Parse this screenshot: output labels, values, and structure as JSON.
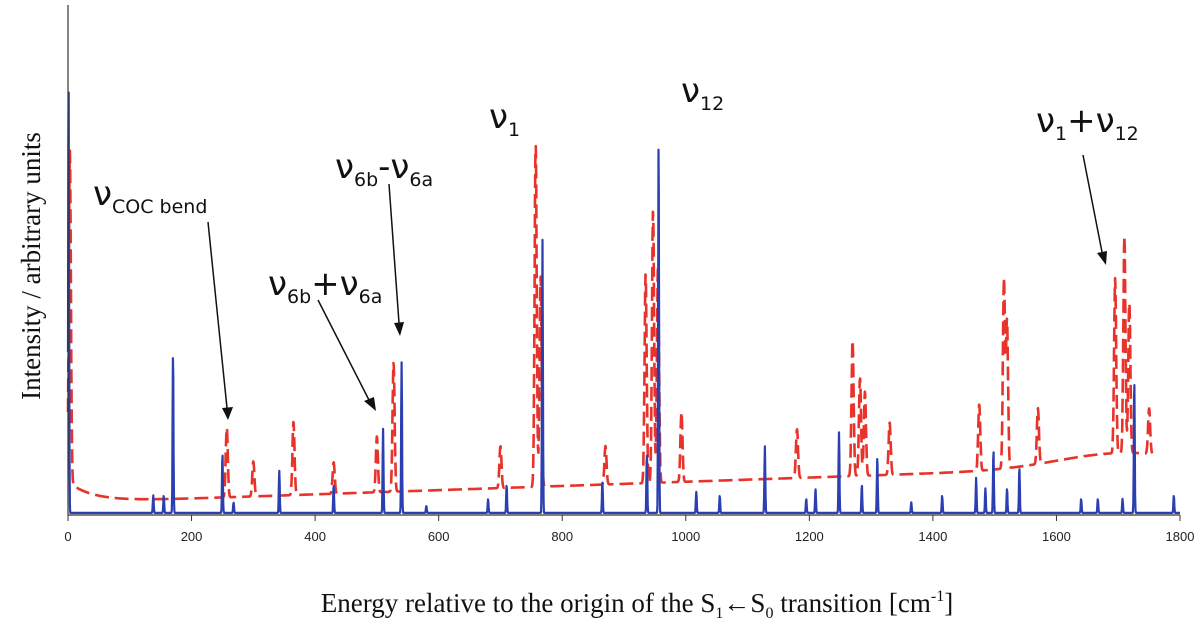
{
  "chart_data": {
    "type": "line",
    "xlabel_main": "Energy relative to the origin of the S",
    "xlabel_sub1": "1",
    "xlabel_arrow": "←S",
    "xlabel_sub0": "0",
    "xlabel_tail": " transition [cm",
    "xlabel_sup": "-1",
    "xlabel_end": "]",
    "ylabel": "Intensity / arbitrary units",
    "xlim": [
      0,
      1800
    ],
    "ylim": [
      0,
      1
    ],
    "x_ticks": [
      0,
      200,
      400,
      600,
      800,
      1000,
      1200,
      1400,
      1600,
      1800
    ],
    "grid": false,
    "series": [
      {
        "color": "#e8332b",
        "style": "dashed",
        "baseline": 0.035,
        "peaks": [
          [
            3,
            0.95
          ],
          [
            257,
            0.2
          ],
          [
            300,
            0.1
          ],
          [
            365,
            0.21
          ],
          [
            430,
            0.09
          ],
          [
            500,
            0.16
          ],
          [
            527,
            0.37
          ],
          [
            700,
            0.12
          ],
          [
            757,
            0.98
          ],
          [
            765,
            0.6
          ],
          [
            870,
            0.11
          ],
          [
            935,
            0.6
          ],
          [
            947,
            0.78
          ],
          [
            955,
            0.62
          ],
          [
            993,
            0.2
          ],
          [
            1180,
            0.14
          ],
          [
            1270,
            0.39
          ],
          [
            1282,
            0.28
          ],
          [
            1290,
            0.24
          ],
          [
            1330,
            0.15
          ],
          [
            1475,
            0.19
          ],
          [
            1515,
            0.54
          ],
          [
            1520,
            0.42
          ],
          [
            1570,
            0.16
          ],
          [
            1695,
            0.5
          ],
          [
            1710,
            0.62
          ],
          [
            1718,
            0.43
          ],
          [
            1750,
            0.13
          ]
        ]
      },
      {
        "color": "#2b3fb0",
        "style": "solid",
        "baseline": 0.006,
        "peaks": [
          [
            1,
            1.25
          ],
          [
            138,
            0.05
          ],
          [
            155,
            0.05
          ],
          [
            170,
            0.46
          ],
          [
            250,
            0.17
          ],
          [
            268,
            0.03
          ],
          [
            342,
            0.12
          ],
          [
            430,
            0.08
          ],
          [
            510,
            0.24
          ],
          [
            540,
            0.43
          ],
          [
            580,
            0.02
          ],
          [
            680,
            0.04
          ],
          [
            710,
            0.08
          ],
          [
            768,
            0.78
          ],
          [
            865,
            0.09
          ],
          [
            937,
            0.17
          ],
          [
            956,
            1.08
          ],
          [
            1017,
            0.06
          ],
          [
            1055,
            0.05
          ],
          [
            1128,
            0.19
          ],
          [
            1195,
            0.04
          ],
          [
            1210,
            0.07
          ],
          [
            1248,
            0.23
          ],
          [
            1285,
            0.08
          ],
          [
            1310,
            0.16
          ],
          [
            1365,
            0.03
          ],
          [
            1415,
            0.05
          ],
          [
            1470,
            0.1
          ],
          [
            1485,
            0.07
          ],
          [
            1498,
            0.18
          ],
          [
            1520,
            0.07
          ],
          [
            1540,
            0.13
          ],
          [
            1640,
            0.04
          ],
          [
            1667,
            0.04
          ],
          [
            1707,
            0.04
          ],
          [
            1726,
            0.38
          ],
          [
            1790,
            0.05
          ]
        ]
      }
    ],
    "annotations": [
      {
        "main": "ν",
        "sub": "COC bend",
        "tip_x": 255,
        "tip_y": 0.22
      },
      {
        "main": "ν",
        "sub": "6b",
        "op": "+ν",
        "sub2": "6a",
        "tip_x": 506,
        "tip_y": 0.26
      },
      {
        "main": "ν",
        "sub": "6b",
        "op": "-ν",
        "sub2": "6a",
        "tip_x": 537,
        "tip_y": 0.43
      },
      {
        "main": "ν",
        "sub": "1"
      },
      {
        "main": "ν",
        "sub": "12"
      },
      {
        "main": "ν",
        "sub": "1",
        "op": "+ν",
        "sub2": "12",
        "tip_x": 1690,
        "tip_y": 0.6
      }
    ]
  }
}
